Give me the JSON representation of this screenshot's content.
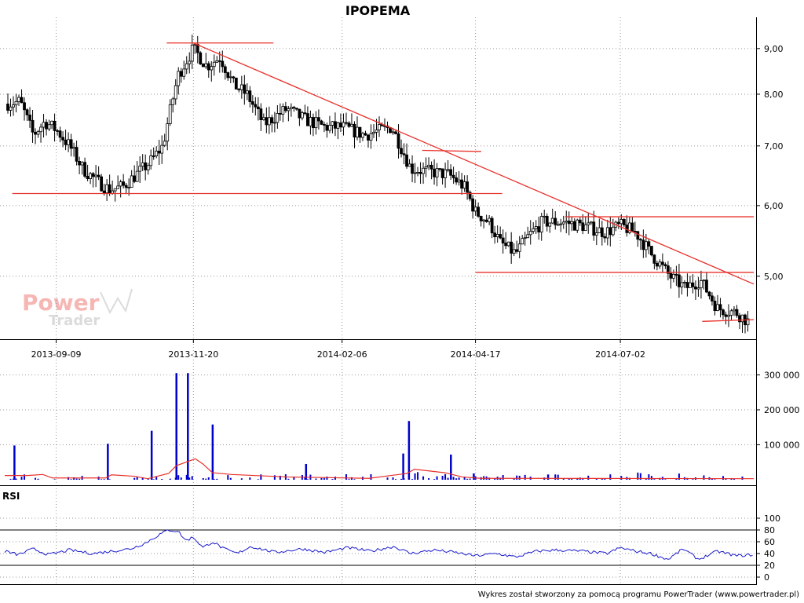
{
  "title": "IPOPEMA",
  "rsi_label": "RSI",
  "footer": "Wykres został stworzony za pomocą programu PowerTrader (www.powertrader.pl)",
  "watermark": {
    "word1": "Power",
    "word2": "Trader"
  },
  "colors": {
    "candle": "#000000",
    "trend": "#e8302a",
    "volume": "#0000cc",
    "volume_ma": "#e8302a",
    "rsi": "#1a1acc",
    "grid": "#999999"
  },
  "chart_data": [
    {
      "type": "candlestick",
      "title": "IPOPEMA",
      "x_ticks": [
        "2013-09-09",
        "2013-11-20",
        "2014-02-06",
        "2014-04-17",
        "2014-07-02"
      ],
      "y_ticks": [
        "9,00",
        "8,00",
        "7,00",
        "6,00",
        "5,00"
      ],
      "y_tick_values": [
        9.0,
        8.0,
        7.0,
        6.0,
        5.0
      ],
      "y_scale": "log",
      "ylim": [
        4.25,
        9.6
      ],
      "date_range": [
        "2013-08-13",
        "2014-09-10"
      ],
      "grid": true,
      "close_path": [
        [
          "2013-08-13",
          7.8
        ],
        [
          "2013-08-21",
          7.85
        ],
        [
          "2013-08-28",
          7.2
        ],
        [
          "2013-09-03",
          7.45
        ],
        [
          "2013-09-09",
          7.3
        ],
        [
          "2013-09-16",
          7.0
        ],
        [
          "2013-09-23",
          6.6
        ],
        [
          "2013-09-30",
          6.4
        ],
        [
          "2013-10-07",
          6.25
        ],
        [
          "2013-10-14",
          6.3
        ],
        [
          "2013-10-21",
          6.5
        ],
        [
          "2013-10-28",
          6.7
        ],
        [
          "2013-11-04",
          7.0
        ],
        [
          "2013-11-08",
          7.7
        ],
        [
          "2013-11-12",
          8.4
        ],
        [
          "2013-11-20",
          9.0
        ],
        [
          "2013-11-27",
          8.6
        ],
        [
          "2013-12-04",
          8.8
        ],
        [
          "2013-12-11",
          8.2
        ],
        [
          "2013-12-18",
          8.0
        ],
        [
          "2013-12-27",
          7.4
        ],
        [
          "2014-01-08",
          7.7
        ],
        [
          "2014-01-17",
          7.5
        ],
        [
          "2014-01-28",
          7.35
        ],
        [
          "2014-02-06",
          7.35
        ],
        [
          "2014-02-18",
          7.2
        ],
        [
          "2014-03-04",
          7.35
        ],
        [
          "2014-03-14",
          6.6
        ],
        [
          "2014-03-24",
          6.55
        ],
        [
          "2014-04-03",
          6.5
        ],
        [
          "2014-04-11",
          6.3
        ],
        [
          "2014-04-17",
          5.9
        ],
        [
          "2014-04-24",
          5.75
        ],
        [
          "2014-04-30",
          5.45
        ],
        [
          "2014-05-08",
          5.3
        ],
        [
          "2014-05-15",
          5.55
        ],
        [
          "2014-05-22",
          5.75
        ],
        [
          "2014-06-02",
          5.75
        ],
        [
          "2014-06-12",
          5.7
        ],
        [
          "2014-06-24",
          5.6
        ],
        [
          "2014-07-02",
          5.7
        ],
        [
          "2014-07-10",
          5.6
        ],
        [
          "2014-07-18",
          5.3
        ],
        [
          "2014-07-28",
          5.0
        ],
        [
          "2014-08-05",
          4.85
        ],
        [
          "2014-08-13",
          4.95
        ],
        [
          "2014-08-22",
          4.6
        ],
        [
          "2014-09-01",
          4.55
        ],
        [
          "2014-09-10",
          4.4
        ]
      ],
      "trend_lines": [
        {
          "from": [
            "2013-11-06",
            9.13
          ],
          "to": [
            "2014-01-01",
            9.13
          ]
        },
        {
          "from": [
            "2013-11-20",
            9.13
          ],
          "to": [
            "2014-09-10",
            4.9
          ]
        },
        {
          "from": [
            "2013-08-17",
            6.19
          ],
          "to": [
            "2014-05-01",
            6.19
          ]
        },
        {
          "from": [
            "2014-03-20",
            6.92
          ],
          "to": [
            "2014-04-20",
            6.9
          ]
        },
        {
          "from": [
            "2014-04-17",
            5.05
          ],
          "to": [
            "2014-09-10",
            5.05
          ]
        },
        {
          "from": [
            "2014-06-03",
            5.83
          ],
          "to": [
            "2014-09-10",
            5.83
          ]
        },
        {
          "from": [
            "2014-08-14",
            4.45
          ],
          "to": [
            "2014-09-10",
            4.47
          ]
        }
      ]
    },
    {
      "type": "bar",
      "name": "volume",
      "y_ticks": [
        "300 000",
        "200 000",
        "100 000"
      ],
      "y_tick_values": [
        300000,
        200000,
        100000
      ],
      "ylim": [
        0,
        310000
      ],
      "spikes": [
        [
          "2013-08-18",
          98000
        ],
        [
          "2013-10-06",
          103000
        ],
        [
          "2013-10-29",
          140000
        ],
        [
          "2013-11-11",
          305000
        ],
        [
          "2013-11-17",
          305000
        ],
        [
          "2013-11-30",
          158000
        ],
        [
          "2014-01-18",
          45000
        ],
        [
          "2014-03-13",
          168000
        ],
        [
          "2014-03-10",
          75000
        ],
        [
          "2014-04-04",
          72000
        ],
        [
          "2014-04-16",
          18000
        ],
        [
          "2014-05-25",
          15000
        ]
      ],
      "ma_path": [
        [
          "2013-08-13",
          12000
        ],
        [
          "2013-08-25",
          12000
        ],
        [
          "2013-09-02",
          15000
        ],
        [
          "2013-09-07",
          5000
        ],
        [
          "2013-10-05",
          5000
        ],
        [
          "2013-10-08",
          14000
        ],
        [
          "2013-10-20",
          10000
        ],
        [
          "2013-10-27",
          3000
        ],
        [
          "2013-11-07",
          18000
        ],
        [
          "2013-11-11",
          40000
        ],
        [
          "2013-11-21",
          60000
        ],
        [
          "2013-11-25",
          45000
        ],
        [
          "2013-11-30",
          20000
        ],
        [
          "2013-12-10",
          15000
        ],
        [
          "2014-01-08",
          8000
        ],
        [
          "2014-02-20",
          4000
        ],
        [
          "2014-03-12",
          18000
        ],
        [
          "2014-03-16",
          30000
        ],
        [
          "2014-04-01",
          20000
        ],
        [
          "2014-04-10",
          8000
        ],
        [
          "2014-04-20",
          4000
        ],
        [
          "2014-09-10",
          3000
        ]
      ]
    },
    {
      "type": "line",
      "name": "RSI",
      "y_ticks": [
        "100",
        "80",
        "60",
        "40",
        "20",
        "0"
      ],
      "y_tick_values": [
        100,
        80,
        60,
        40,
        20,
        0
      ],
      "ylim": [
        0,
        100
      ],
      "reference_lines": [
        80,
        20
      ],
      "values_path": [
        [
          "2013-08-13",
          44
        ],
        [
          "2013-08-20",
          38
        ],
        [
          "2013-08-28",
          48
        ],
        [
          "2013-09-05",
          38
        ],
        [
          "2013-09-16",
          46
        ],
        [
          "2013-09-28",
          40
        ],
        [
          "2013-10-08",
          44
        ],
        [
          "2013-10-18",
          48
        ],
        [
          "2013-10-26",
          58
        ],
        [
          "2013-11-02",
          72
        ],
        [
          "2013-11-07",
          80
        ],
        [
          "2013-11-12",
          78
        ],
        [
          "2013-11-16",
          62
        ],
        [
          "2013-11-20",
          68
        ],
        [
          "2013-11-25",
          50
        ],
        [
          "2013-11-30",
          60
        ],
        [
          "2013-12-06",
          48
        ],
        [
          "2013-12-13",
          40
        ],
        [
          "2013-12-20",
          52
        ],
        [
          "2014-01-02",
          42
        ],
        [
          "2014-01-16",
          48
        ],
        [
          "2014-01-28",
          42
        ],
        [
          "2014-02-09",
          50
        ],
        [
          "2014-02-21",
          44
        ],
        [
          "2014-03-05",
          52
        ],
        [
          "2014-03-14",
          40
        ],
        [
          "2014-03-26",
          46
        ],
        [
          "2014-04-06",
          42
        ],
        [
          "2014-04-17",
          36
        ],
        [
          "2014-04-28",
          40
        ],
        [
          "2014-05-08",
          34
        ],
        [
          "2014-05-19",
          44
        ],
        [
          "2014-05-29",
          46
        ],
        [
          "2014-06-12",
          44
        ],
        [
          "2014-06-25",
          40
        ],
        [
          "2014-07-02",
          50
        ],
        [
          "2014-07-10",
          44
        ],
        [
          "2014-07-18",
          40
        ],
        [
          "2014-07-27",
          30
        ],
        [
          "2014-08-04",
          48
        ],
        [
          "2014-08-12",
          30
        ],
        [
          "2014-08-22",
          44
        ],
        [
          "2014-09-01",
          36
        ],
        [
          "2014-09-10",
          38
        ]
      ]
    }
  ]
}
